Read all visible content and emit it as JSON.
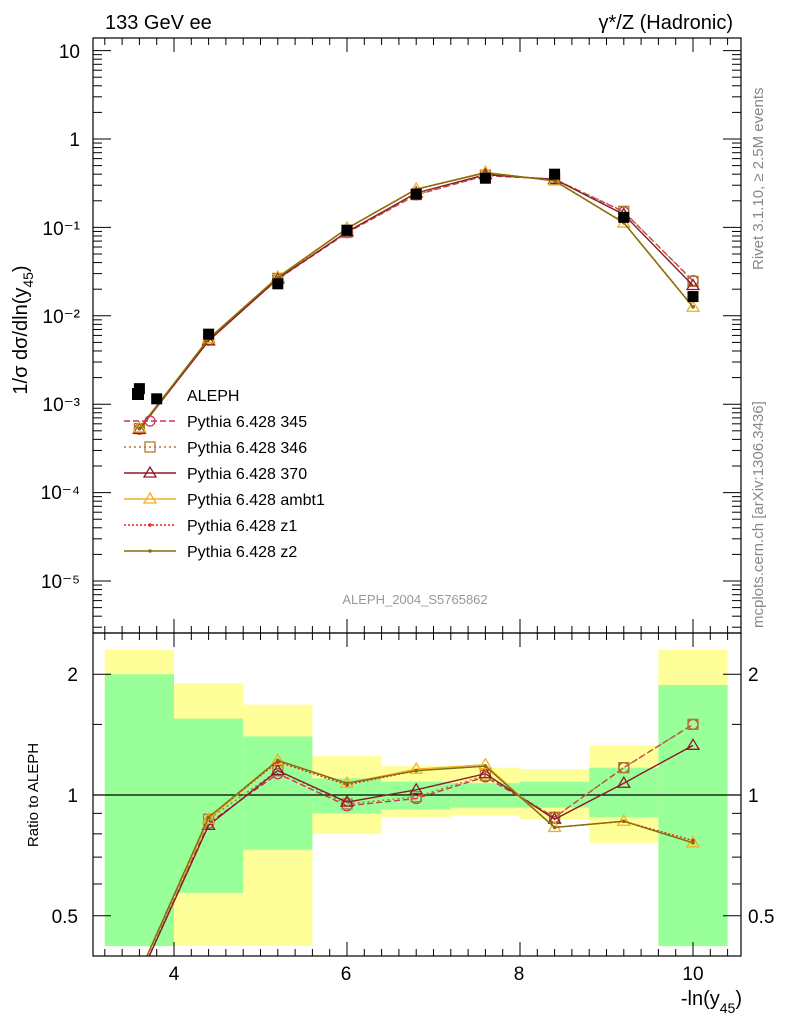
{
  "header": {
    "left": "133 GeV ee",
    "right": "γ*/Z (Hadronic)"
  },
  "side_labels": {
    "rivet": "Rivet 3.1.10, ≥ 2.5M events",
    "mcplots": "mcplots.cern.ch [arXiv:1306.3436]"
  },
  "analysis_id": "ALEPH_2004_S5765862",
  "axes": {
    "main_ylabel": "1/σ  dσ/dln(y45)",
    "ratio_ylabel": "Ratio to ALEPH",
    "xlabel": "-ln(y45)",
    "x_ticks": [
      "4",
      "6",
      "8",
      "10"
    ],
    "main_y_ticks": [
      "10",
      "1",
      "10⁻¹",
      "10⁻²",
      "10⁻³",
      "10⁻⁴",
      "10⁻⁵"
    ],
    "ratio_y_ticks": [
      "0.5",
      "1",
      "2"
    ]
  },
  "legend": {
    "data_label": "ALEPH",
    "entries": [
      "Pythia 6.428 345",
      "Pythia 6.428 346",
      "Pythia 6.428 370",
      "Pythia 6.428 ambt1",
      "Pythia 6.428 z1",
      "Pythia 6.428 z2"
    ]
  },
  "chart_data": {
    "type": "line",
    "x_range": [
      3.0,
      10.5
    ],
    "main_ylim": [
      3e-06,
      15
    ],
    "main_yscale": "log",
    "ratio_ylim": [
      0.42,
      2.3
    ],
    "ratio_yscale": "log",
    "data": {
      "name": "ALEPH",
      "color": "#000000",
      "x": [
        3.6,
        3.8,
        4.4,
        5.2,
        6.0,
        6.8,
        7.6,
        8.4,
        9.2,
        10.0
      ],
      "y": [
        0.0015,
        0.00115,
        0.0062,
        0.023,
        0.093,
        0.238,
        0.36,
        0.4,
        0.13,
        0.0165
      ]
    },
    "bands": [
      {
        "xlo": 3.2,
        "xhi": 4.0,
        "green": [
          0.42,
          2.0
        ],
        "yellow": [
          0.42,
          2.3
        ]
      },
      {
        "xlo": 4.0,
        "xhi": 4.8,
        "green": [
          0.57,
          1.55
        ],
        "yellow": [
          0.42,
          1.9
        ]
      },
      {
        "xlo": 4.8,
        "xhi": 5.6,
        "green": [
          0.73,
          1.4
        ],
        "yellow": [
          0.42,
          1.68
        ]
      },
      {
        "xlo": 5.6,
        "xhi": 6.4,
        "green": [
          0.9,
          1.1
        ],
        "yellow": [
          0.8,
          1.25
        ]
      },
      {
        "xlo": 6.4,
        "xhi": 7.2,
        "green": [
          0.92,
          1.08
        ],
        "yellow": [
          0.88,
          1.18
        ]
      },
      {
        "xlo": 7.2,
        "xhi": 8.0,
        "green": [
          0.93,
          1.07
        ],
        "yellow": [
          0.89,
          1.17
        ]
      },
      {
        "xlo": 8.0,
        "xhi": 8.8,
        "green": [
          0.93,
          1.08
        ],
        "yellow": [
          0.87,
          1.16
        ]
      },
      {
        "xlo": 8.8,
        "xhi": 9.6,
        "green": [
          0.88,
          1.17
        ],
        "yellow": [
          0.76,
          1.33
        ]
      },
      {
        "xlo": 9.6,
        "xhi": 10.4,
        "green": [
          0.42,
          1.88
        ],
        "yellow": [
          0.42,
          2.3
        ]
      }
    ],
    "series": [
      {
        "name": "Pythia 6.428 345",
        "color": "#cc3355",
        "dash": "6,3",
        "marker": "circle",
        "x": [
          3.6,
          4.4,
          5.2,
          6.0,
          6.8,
          7.6,
          8.4,
          9.2,
          10.0
        ],
        "y": [
          0.00052,
          0.0053,
          0.026,
          0.087,
          0.233,
          0.385,
          0.35,
          0.15,
          0.025
        ]
      },
      {
        "name": "Pythia 6.428 346",
        "color": "#b07830",
        "dash": "2,3",
        "marker": "square",
        "x": [
          3.6,
          4.4,
          5.2,
          6.0,
          6.8,
          7.6,
          8.4,
          9.2,
          10.0
        ],
        "y": [
          0.00053,
          0.0054,
          0.0265,
          0.088,
          0.235,
          0.39,
          0.352,
          0.152,
          0.0245
        ]
      },
      {
        "name": "Pythia 6.428 370",
        "color": "#8b1a2a",
        "dash": "",
        "marker": "triangle",
        "x": [
          3.6,
          4.4,
          5.2,
          6.0,
          6.8,
          7.6,
          8.4,
          9.2,
          10.0
        ],
        "y": [
          0.00052,
          0.0052,
          0.0262,
          0.089,
          0.245,
          0.395,
          0.35,
          0.14,
          0.022
        ]
      },
      {
        "name": "Pythia 6.428 ambt1",
        "color": "#f0b020",
        "dash": "",
        "marker": "triangle",
        "x": [
          3.6,
          4.4,
          5.2,
          6.0,
          6.8,
          7.6,
          8.4,
          9.2,
          10.0
        ],
        "y": [
          0.00054,
          0.0055,
          0.0275,
          0.098,
          0.272,
          0.42,
          0.335,
          0.112,
          0.0125
        ]
      },
      {
        "name": "Pythia 6.428 z1",
        "color": "#ee2222",
        "dash": "2,2",
        "marker": "dot",
        "x": [
          3.6,
          4.4,
          5.2,
          6.0,
          6.8,
          7.6,
          8.4,
          9.2,
          10.0
        ],
        "y": [
          0.00053,
          0.0055,
          0.027,
          0.097,
          0.27,
          0.415,
          0.338,
          0.113,
          0.0127
        ]
      },
      {
        "name": "Pythia 6.428 z2",
        "color": "#807010",
        "dash": "",
        "marker": "dot",
        "x": [
          3.6,
          4.4,
          5.2,
          6.0,
          6.8,
          7.6,
          8.4,
          9.2,
          10.0
        ],
        "y": [
          0.00053,
          0.0055,
          0.0272,
          0.097,
          0.27,
          0.415,
          0.337,
          0.113,
          0.0126
        ]
      }
    ],
    "ratios": [
      {
        "name": "Pythia 6.428 345",
        "x": [
          3.6,
          4.4,
          5.2,
          6.0,
          6.8,
          7.6,
          8.4,
          9.2,
          10.0
        ],
        "y": [
          0.35,
          0.85,
          1.13,
          0.94,
          0.98,
          1.11,
          0.88,
          1.17,
          1.5
        ]
      },
      {
        "name": "Pythia 6.428 346",
        "x": [
          3.6,
          4.4,
          5.2,
          6.0,
          6.8,
          7.6,
          8.4,
          9.2,
          10.0
        ],
        "y": [
          0.35,
          0.87,
          1.15,
          0.95,
          0.99,
          1.12,
          0.88,
          1.17,
          1.5
        ]
      },
      {
        "name": "Pythia 6.428 370",
        "x": [
          3.6,
          4.4,
          5.2,
          6.0,
          6.8,
          7.6,
          8.4,
          9.2,
          10.0
        ],
        "y": [
          0.35,
          0.84,
          1.15,
          0.96,
          1.03,
          1.13,
          0.87,
          1.07,
          1.33
        ]
      },
      {
        "name": "Pythia 6.428 ambt1",
        "x": [
          3.6,
          4.4,
          5.2,
          6.0,
          6.8,
          7.6,
          8.4,
          9.2,
          10.0
        ],
        "y": [
          0.36,
          0.87,
          1.22,
          1.07,
          1.16,
          1.19,
          0.83,
          0.86,
          0.76
        ]
      },
      {
        "name": "Pythia 6.428 z1",
        "x": [
          3.6,
          4.4,
          5.2,
          6.0,
          6.8,
          7.6,
          8.4,
          9.2,
          10.0
        ],
        "y": [
          0.36,
          0.88,
          1.21,
          1.06,
          1.15,
          1.18,
          0.83,
          0.86,
          0.77
        ]
      },
      {
        "name": "Pythia 6.428 z2",
        "x": [
          3.6,
          4.4,
          5.2,
          6.0,
          6.8,
          7.6,
          8.4,
          9.2,
          10.0
        ],
        "y": [
          0.36,
          0.88,
          1.22,
          1.07,
          1.15,
          1.18,
          0.83,
          0.86,
          0.76
        ]
      }
    ]
  }
}
